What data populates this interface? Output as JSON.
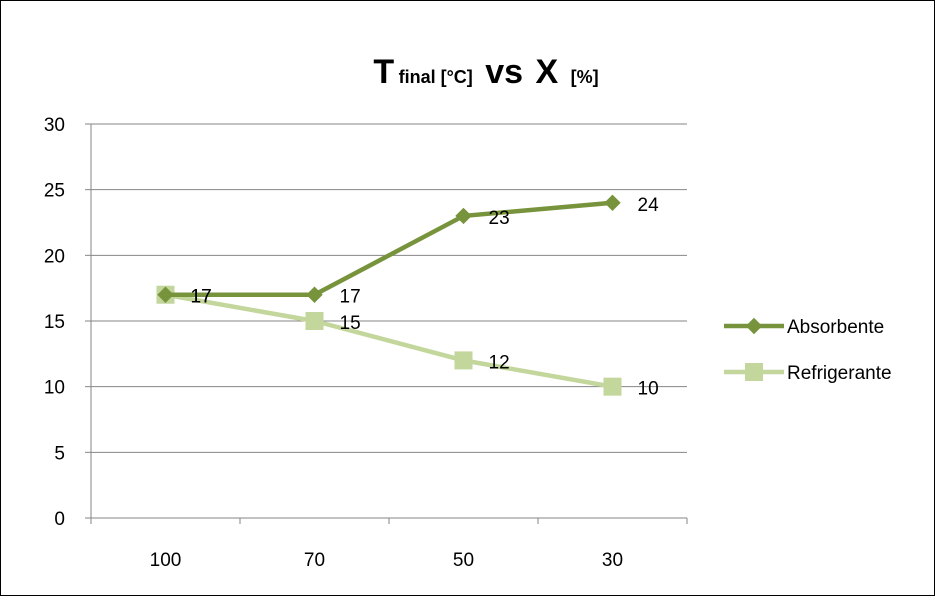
{
  "chart_data": {
    "type": "line",
    "title": {
      "main": "T",
      "sub": "final [°C]",
      "vs": "vs",
      "var": "X",
      "unit": "[%]"
    },
    "categories": [
      "100",
      "70",
      "50",
      "30"
    ],
    "ylim": [
      0,
      30
    ],
    "yticks": [
      "0",
      "5",
      "10",
      "15",
      "20",
      "25",
      "30"
    ],
    "grid": true,
    "legend_position": "right",
    "series": [
      {
        "name": "Absorbente",
        "values": [
          17,
          17,
          23,
          24
        ],
        "marker": "diamond",
        "color": "#77933c",
        "labels": [
          "17",
          "17",
          "23",
          "24"
        ]
      },
      {
        "name": "Refrigerante",
        "values": [
          17,
          15,
          12,
          10
        ],
        "marker": "square",
        "color": "#c3d69b",
        "labels": [
          "17",
          "15",
          "12",
          "10"
        ]
      }
    ]
  },
  "colors": {
    "gridline": "#868686",
    "axis": "#868686"
  }
}
